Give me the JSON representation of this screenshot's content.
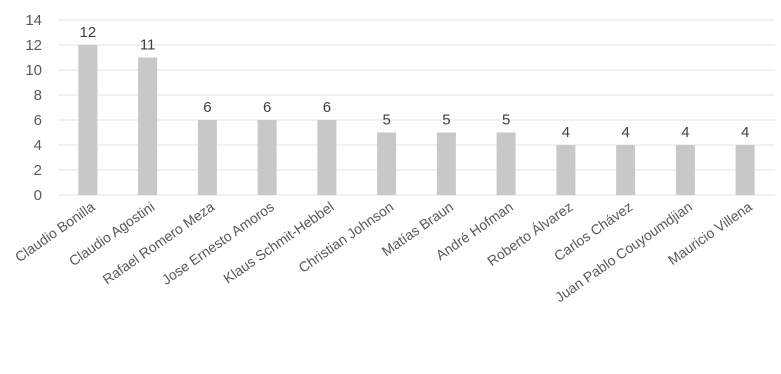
{
  "chart_data": {
    "type": "bar",
    "categories": [
      "Claudio Bonilla",
      "Claudio Agostini",
      "Rafael Romero Meza",
      "Jose Ernesto Amoros",
      "Klaus Schmit-Hebbel",
      "Christian Johnson",
      "Matías Braun",
      "André Hofman",
      "Roberto Álvarez",
      "Carlos Chávez",
      "Juan Pablo Couyoumdjian",
      "Mauricio Villena"
    ],
    "values": [
      12,
      11,
      6,
      6,
      6,
      5,
      5,
      5,
      4,
      4,
      4,
      4
    ],
    "ylim": [
      0,
      14
    ],
    "yticks": [
      0,
      2,
      4,
      6,
      8,
      10,
      12,
      14
    ],
    "grid": true,
    "data_labels": true,
    "colors": {
      "bar": "#c8c8c8",
      "grid": "#e3e3e3",
      "text": "#595959"
    }
  }
}
